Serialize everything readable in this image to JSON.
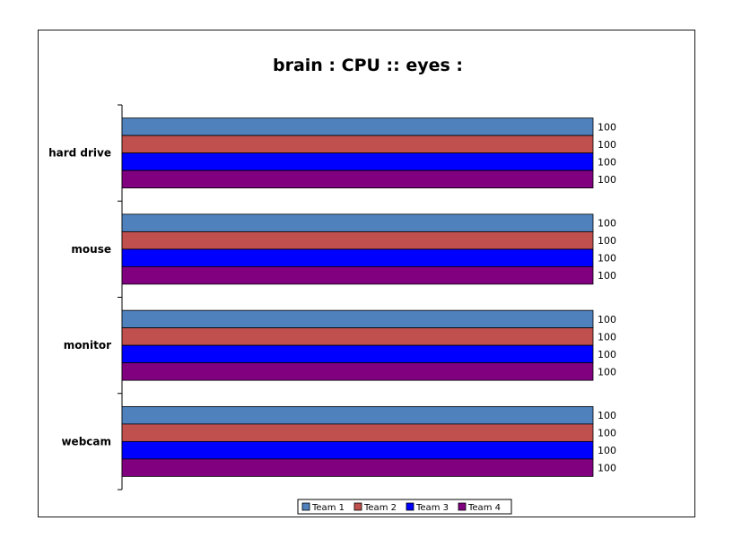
{
  "chart_data": {
    "type": "bar",
    "orientation": "horizontal",
    "title": "brain : CPU :: eyes :",
    "xlabel": "",
    "ylabel": "",
    "categories": [
      "hard drive",
      "mouse",
      "monitor",
      "webcam"
    ],
    "series": [
      {
        "name": "Team 1",
        "color": "#4F81BD",
        "values": [
          100,
          100,
          100,
          100
        ]
      },
      {
        "name": "Team 2",
        "color": "#C0504D",
        "values": [
          100,
          100,
          100,
          100
        ]
      },
      {
        "name": "Team 3",
        "color": "#0000FF",
        "values": [
          100,
          100,
          100,
          100
        ]
      },
      {
        "name": "Team 4",
        "color": "#800080",
        "values": [
          100,
          100,
          100,
          100
        ]
      }
    ],
    "xlim": [
      0,
      100
    ],
    "grid": false,
    "data_labels": true,
    "legend_position": "bottom"
  }
}
